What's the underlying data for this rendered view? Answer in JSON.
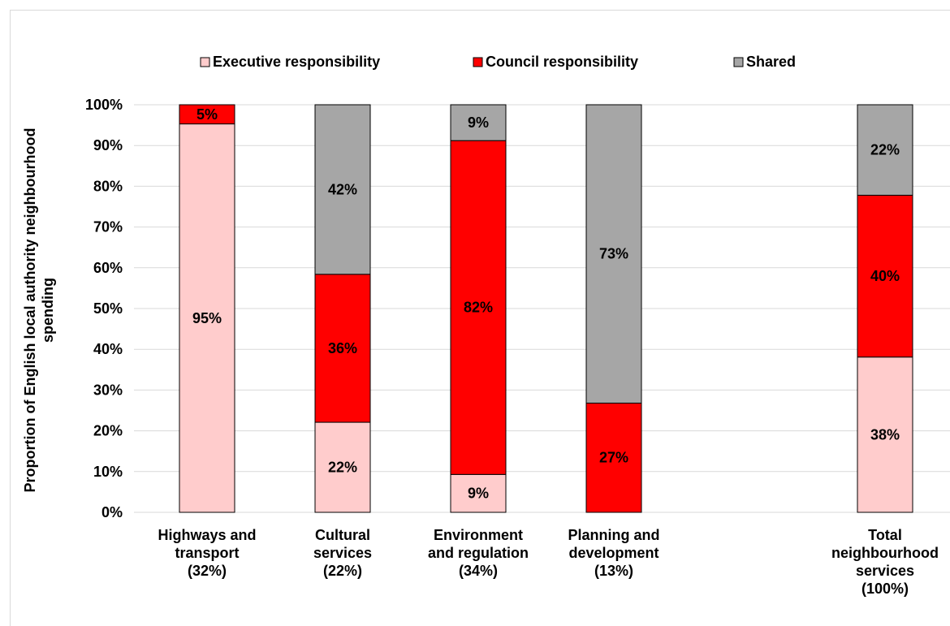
{
  "chart_data": {
    "type": "bar",
    "stacked": true,
    "percent_stacked": true,
    "categories": [
      [
        "Highways and",
        "transport",
        "(32%)"
      ],
      [
        "Cultural",
        "services",
        "(22%)"
      ],
      [
        "Environment",
        "and regulation",
        "(34%)"
      ],
      [
        "Planning and",
        "development",
        "(13%)"
      ],
      [
        "Total",
        "neighbourhood",
        "services",
        "(100%)"
      ]
    ],
    "category_gap_after_index": 3,
    "series": [
      {
        "name": "Executive responsibility",
        "color": "#ffcccc",
        "values": [
          95.3,
          22.1,
          9.3,
          0,
          38.1
        ],
        "labels": [
          "95%",
          "22%",
          "9%",
          "",
          "38%"
        ]
      },
      {
        "name": "Council responsibility",
        "color": "#ff0000",
        "values": [
          4.7,
          36.3,
          81.9,
          26.8,
          39.7
        ],
        "labels": [
          "5%",
          "36%",
          "82%",
          "27%",
          "40%"
        ]
      },
      {
        "name": "Shared",
        "color": "#a6a6a6",
        "values": [
          0,
          41.6,
          8.8,
          73.2,
          22.2
        ],
        "labels": [
          "",
          "42%",
          "9%",
          "73%",
          "22%"
        ]
      }
    ],
    "ylabel": [
      "Proportion of English local authority neighbourhood",
      "spending"
    ],
    "ylim": [
      0,
      100
    ],
    "yticks": [
      "0%",
      "10%",
      "20%",
      "30%",
      "40%",
      "50%",
      "60%",
      "70%",
      "80%",
      "90%",
      "100%"
    ],
    "grid": true,
    "legend_position": "top"
  }
}
